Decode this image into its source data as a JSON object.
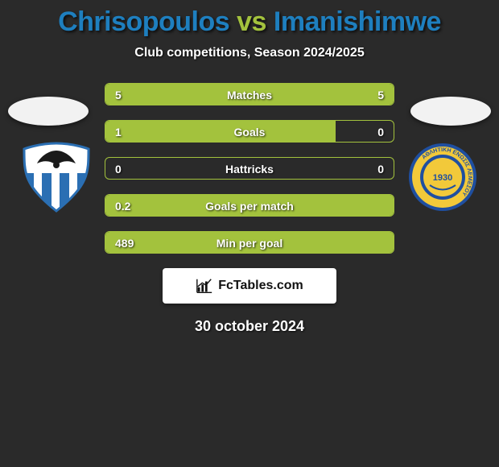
{
  "title": {
    "left": "Chrisopoulos",
    "mid": "vs",
    "right": "Imanishimwe",
    "color_left": "#1e7fbf",
    "color_mid": "#a3c23d",
    "color_right": "#1e7fbf"
  },
  "subtitle": "Club competitions, Season 2024/2025",
  "date": "30 october 2024",
  "accent": {
    "border": "#a3c23d",
    "fill": "#a3c23d"
  },
  "ellipse_color": "#f2f2f2",
  "rows": [
    {
      "label": "Matches",
      "left_val": "5",
      "right_val": "5",
      "left_fill_pct": 50,
      "right_fill_pct": 50
    },
    {
      "label": "Goals",
      "left_val": "1",
      "right_val": "0",
      "left_fill_pct": 80,
      "right_fill_pct": 0
    },
    {
      "label": "Hattricks",
      "left_val": "0",
      "right_val": "0",
      "left_fill_pct": 0,
      "right_fill_pct": 0
    },
    {
      "label": "Goals per match",
      "left_val": "0.2",
      "right_val": "",
      "left_fill_pct": 100,
      "right_fill_pct": 0
    },
    {
      "label": "Min per goal",
      "left_val": "489",
      "right_val": "",
      "left_fill_pct": 100,
      "right_fill_pct": 0
    }
  ],
  "brand": {
    "name": "FcTables.com"
  },
  "badges": {
    "left": {
      "name": "anorthosis-badge",
      "shield_top": "#ffffff",
      "shield_stripes": "#2b6fb3",
      "outline": "#2b6fb3",
      "eagle": "#1a1a1a"
    },
    "right": {
      "name": "ael-limassol-badge",
      "ring_outer": "#1f4fa0",
      "ring_inner": "#f2c93a",
      "center": "#f2c93a",
      "text": "ΑΘΛΗΤΙΚΗ ΕΝΩΣΙΣ ΛΕΜΕΣΟΥ",
      "year": "1930",
      "text_color": "#1f4fa0"
    }
  }
}
